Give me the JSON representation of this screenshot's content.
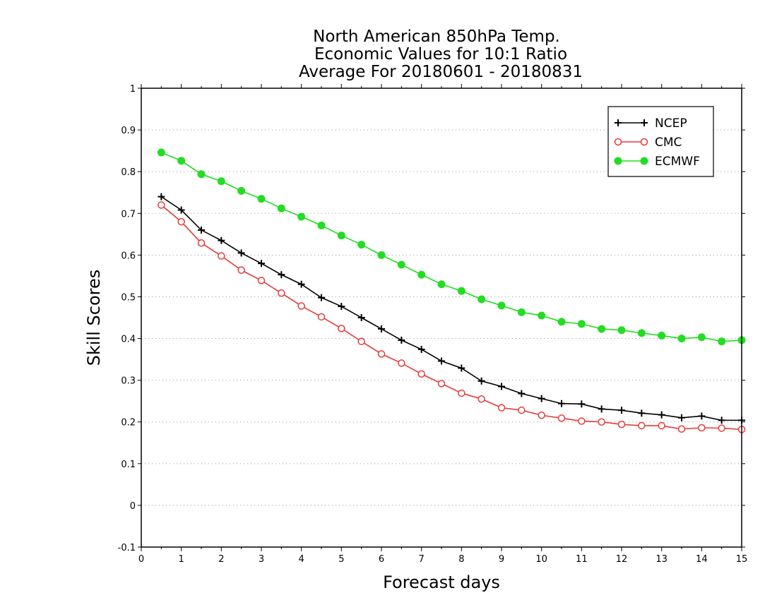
{
  "chart_data": {
    "type": "line",
    "title": [
      "North American 850hPa Temp.",
      "Economic Values for 10:1 Ratio",
      "Average For 20180601 - 20180831"
    ],
    "xlabel": "Forecast days",
    "ylabel": "Skill Scores",
    "xlim": [
      0,
      15
    ],
    "ylim": [
      -0.1,
      1
    ],
    "xticks": [
      "0",
      "1",
      "2",
      "3",
      "4",
      "5",
      "6",
      "7",
      "8",
      "9",
      "10",
      "11",
      "12",
      "13",
      "14",
      "15"
    ],
    "yticks": [
      "-0.1",
      "0",
      "0.1",
      "0.2",
      "0.3",
      "0.4",
      "0.5",
      "0.6",
      "0.7",
      "0.8",
      "0.9",
      "1"
    ],
    "grid": "horizontal dotted",
    "legend_position": "top-right",
    "x": [
      0.5,
      1,
      1.5,
      2,
      2.5,
      3,
      3.5,
      4,
      4.5,
      5,
      5.5,
      6,
      6.5,
      7,
      7.5,
      8,
      8.5,
      9,
      9.5,
      10,
      10.5,
      11,
      11.5,
      12,
      12.5,
      13,
      13.5,
      14,
      14.5,
      15
    ],
    "series": [
      {
        "name": "NCEP",
        "color": "#000000",
        "marker": "plus",
        "values": [
          0.74,
          0.708,
          0.66,
          0.635,
          0.605,
          0.58,
          0.553,
          0.53,
          0.498,
          0.477,
          0.45,
          0.423,
          0.396,
          0.374,
          0.346,
          0.329,
          0.298,
          0.285,
          0.268,
          0.256,
          0.244,
          0.243,
          0.231,
          0.228,
          0.221,
          0.217,
          0.21,
          0.214,
          0.204,
          0.204
        ]
      },
      {
        "name": "CMC",
        "color": "#e83a3a",
        "marker": "open-circle",
        "values": [
          0.72,
          0.68,
          0.629,
          0.598,
          0.564,
          0.539,
          0.509,
          0.478,
          0.452,
          0.424,
          0.393,
          0.363,
          0.341,
          0.315,
          0.292,
          0.269,
          0.255,
          0.234,
          0.228,
          0.216,
          0.209,
          0.202,
          0.2,
          0.194,
          0.191,
          0.191,
          0.183,
          0.186,
          0.185,
          0.182
        ]
      },
      {
        "name": "ECMWF",
        "color": "#22dd22",
        "marker": "filled-circle",
        "values": [
          0.846,
          0.826,
          0.794,
          0.777,
          0.754,
          0.735,
          0.712,
          0.692,
          0.671,
          0.647,
          0.625,
          0.6,
          0.577,
          0.553,
          0.53,
          0.514,
          0.494,
          0.479,
          0.463,
          0.455,
          0.44,
          0.435,
          0.423,
          0.42,
          0.413,
          0.407,
          0.4,
          0.403,
          0.393,
          0.396
        ]
      }
    ]
  }
}
